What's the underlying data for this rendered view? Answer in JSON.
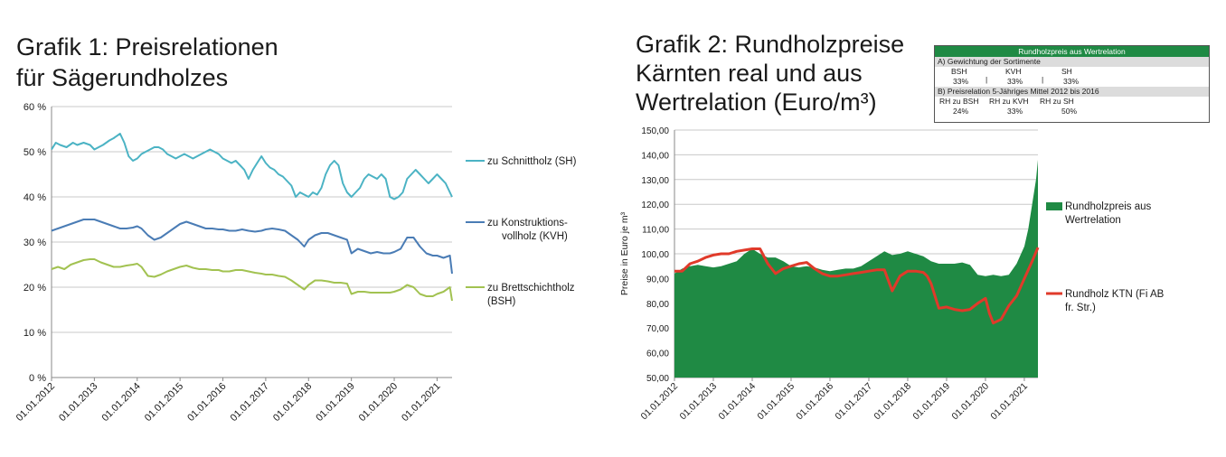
{
  "chart1": {
    "title_line1": "Grafik 1: Preisrelationen",
    "title_line2": "für Sägerundholzes",
    "chart_data": {
      "type": "line",
      "ylim": [
        0,
        60
      ],
      "yticks": [
        "0 %",
        "10 %",
        "20 %",
        "30 %",
        "40 %",
        "50 %",
        "60 %"
      ],
      "xticks": [
        "01.01.2012",
        "01.01.2013",
        "01.01.2014",
        "01.01.2015",
        "01.01.2016",
        "01.01.2017",
        "01.01.2018",
        "01.01.2019",
        "01.01.2020",
        "01.01.2021"
      ],
      "x_start": 2012.0,
      "x_end": 2021.35,
      "series": [
        {
          "name": "zu Schnittholz (SH)",
          "legend": [
            "zu Schnittholz (SH)"
          ],
          "color": "#4bb3c4",
          "x": [
            2012.0,
            2012.1,
            2012.2,
            2012.35,
            2012.5,
            2012.6,
            2012.75,
            2012.9,
            2013.0,
            2013.1,
            2013.2,
            2013.35,
            2013.45,
            2013.6,
            2013.7,
            2013.8,
            2013.9,
            2014.0,
            2014.1,
            2014.2,
            2014.3,
            2014.4,
            2014.5,
            2014.6,
            2014.7,
            2014.8,
            2014.9,
            2015.0,
            2015.1,
            2015.2,
            2015.3,
            2015.4,
            2015.5,
            2015.6,
            2015.7,
            2015.8,
            2015.9,
            2016.0,
            2016.1,
            2016.2,
            2016.3,
            2016.4,
            2016.5,
            2016.6,
            2016.7,
            2016.8,
            2016.9,
            2017.0,
            2017.1,
            2017.2,
            2017.3,
            2017.4,
            2017.5,
            2017.6,
            2017.7,
            2017.8,
            2017.9,
            2018.0,
            2018.1,
            2018.2,
            2018.3,
            2018.4,
            2018.5,
            2018.6,
            2018.7,
            2018.8,
            2018.9,
            2019.0,
            2019.1,
            2019.2,
            2019.3,
            2019.4,
            2019.5,
            2019.6,
            2019.7,
            2019.8,
            2019.9,
            2020.0,
            2020.1,
            2020.2,
            2020.3,
            2020.4,
            2020.5,
            2020.6,
            2020.7,
            2020.8,
            2020.9,
            2021.0,
            2021.1,
            2021.2,
            2021.3,
            2021.35
          ],
          "values": [
            50.5,
            52,
            51.5,
            51,
            52,
            51.5,
            52,
            51.5,
            50.5,
            51,
            51.5,
            52.5,
            53,
            54,
            52,
            49,
            48,
            48.5,
            49.5,
            50,
            50.5,
            51,
            51,
            50.5,
            49.5,
            49,
            48.5,
            49,
            49.5,
            49,
            48.5,
            49,
            49.5,
            50,
            50.5,
            50,
            49.5,
            48.5,
            48,
            47.5,
            48,
            47,
            46,
            44,
            46,
            47.5,
            49,
            47.5,
            46.5,
            46,
            45,
            44.5,
            43.5,
            42.5,
            40,
            41,
            40.5,
            40,
            41,
            40.5,
            42,
            45,
            47,
            48,
            47,
            43,
            41,
            40,
            41,
            42,
            44,
            45,
            44.5,
            44,
            45,
            44,
            40,
            39.5,
            40,
            41,
            44,
            45,
            46,
            45,
            44,
            43,
            44,
            45,
            44,
            43,
            41,
            40
          ],
          "pretrim": true
        },
        {
          "name": "zu Konstruktionsvollholz (KVH)",
          "legend": [
            "zu Konstruktions-",
            "vollholz (KVH)"
          ],
          "color": "#4a7cb5",
          "x": [
            2012.0,
            2012.15,
            2012.3,
            2012.45,
            2012.6,
            2012.75,
            2012.9,
            2013.0,
            2013.15,
            2013.3,
            2013.45,
            2013.6,
            2013.75,
            2013.9,
            2014.0,
            2014.1,
            2014.25,
            2014.4,
            2014.55,
            2014.7,
            2014.85,
            2015.0,
            2015.15,
            2015.3,
            2015.45,
            2015.6,
            2015.75,
            2015.9,
            2016.0,
            2016.15,
            2016.3,
            2016.45,
            2016.6,
            2016.75,
            2016.9,
            2017.0,
            2017.15,
            2017.3,
            2017.45,
            2017.6,
            2017.75,
            2017.9,
            2018.0,
            2018.15,
            2018.3,
            2018.45,
            2018.6,
            2018.75,
            2018.9,
            2019.0,
            2019.15,
            2019.3,
            2019.45,
            2019.6,
            2019.75,
            2019.9,
            2020.0,
            2020.15,
            2020.3,
            2020.45,
            2020.6,
            2020.75,
            2020.9,
            2021.0,
            2021.15,
            2021.3,
            2021.35
          ],
          "values": [
            32.5,
            33,
            33.5,
            34,
            34.5,
            35,
            35,
            35,
            34.5,
            34,
            33.5,
            33,
            33,
            33.2,
            33.5,
            33,
            31.5,
            30.5,
            31,
            32,
            33,
            34,
            34.5,
            34,
            33.5,
            33,
            33,
            32.8,
            32.8,
            32.5,
            32.5,
            32.8,
            32.5,
            32.3,
            32.5,
            32.8,
            33,
            32.8,
            32.5,
            31.5,
            30.5,
            29,
            30.5,
            31.5,
            32,
            32,
            31.5,
            31,
            30.5,
            27.5,
            28.5,
            28,
            27.5,
            27.8,
            27.5,
            27.5,
            27.8,
            28.5,
            31,
            31,
            29,
            27.5,
            27,
            27,
            26.5,
            27,
            23
          ]
        },
        {
          "name": "zu Brettschichtholz (BSH)",
          "legend": [
            "zu Brettschichtholz",
            "(BSH)"
          ],
          "color": "#a2c251",
          "x": [
            2012.0,
            2012.15,
            2012.3,
            2012.45,
            2012.6,
            2012.75,
            2012.9,
            2013.0,
            2013.15,
            2013.3,
            2013.45,
            2013.6,
            2013.75,
            2013.9,
            2014.0,
            2014.1,
            2014.25,
            2014.4,
            2014.55,
            2014.7,
            2014.85,
            2015.0,
            2015.15,
            2015.3,
            2015.45,
            2015.6,
            2015.75,
            2015.9,
            2016.0,
            2016.15,
            2016.3,
            2016.45,
            2016.6,
            2016.75,
            2016.9,
            2017.0,
            2017.15,
            2017.3,
            2017.45,
            2017.6,
            2017.75,
            2017.9,
            2018.0,
            2018.15,
            2018.3,
            2018.45,
            2018.6,
            2018.75,
            2018.9,
            2019.0,
            2019.15,
            2019.3,
            2019.45,
            2019.6,
            2019.75,
            2019.9,
            2020.0,
            2020.15,
            2020.3,
            2020.45,
            2020.6,
            2020.75,
            2020.9,
            2021.0,
            2021.15,
            2021.3,
            2021.35
          ],
          "values": [
            24,
            24.5,
            24,
            25,
            25.5,
            26,
            26.2,
            26.2,
            25.5,
            25,
            24.5,
            24.5,
            24.8,
            25,
            25.2,
            24.5,
            22.5,
            22.3,
            22.8,
            23.5,
            24,
            24.5,
            24.8,
            24.3,
            24,
            24,
            23.8,
            23.8,
            23.5,
            23.5,
            23.8,
            23.8,
            23.5,
            23.2,
            23,
            22.8,
            22.8,
            22.5,
            22.3,
            21.5,
            20.5,
            19.5,
            20.5,
            21.5,
            21.5,
            21.3,
            21,
            21,
            20.8,
            18.5,
            19,
            19,
            18.8,
            18.8,
            18.8,
            18.8,
            19,
            19.5,
            20.5,
            20,
            18.5,
            18,
            18,
            18.5,
            19,
            20,
            17
          ]
        }
      ]
    }
  },
  "chart2": {
    "title_line1": "Grafik 2: Rundholzpreise",
    "title_line2": "Kärnten real und aus",
    "title_line3": "Wertrelation (Euro/m³)",
    "chart_data": {
      "type": "area",
      "ylabel": "Preise in Euro je m³",
      "ylim": [
        50,
        150
      ],
      "yticks": [
        "50,00",
        "60,00",
        "70,00",
        "80,00",
        "90,00",
        "100,00",
        "110,00",
        "120,00",
        "130,00",
        "140,00",
        "150,00"
      ],
      "xticks": [
        "01.01.2012",
        "01.01.2013",
        "01.01.2014",
        "01.01.2015",
        "01.01.2016",
        "01.01.2017",
        "01.01.2018",
        "01.01.2019",
        "01.01.2020",
        "01.01.2021"
      ],
      "x_start": 2012.0,
      "x_end": 2021.35,
      "series": [
        {
          "name": "Rundholzpreis aus Wertrelation",
          "legend": [
            "Rundholzpreis aus",
            "Wertrelation"
          ],
          "color": "#1f8a44",
          "kind": "area",
          "x": [
            2012.0,
            2012.2,
            2012.4,
            2012.6,
            2012.8,
            2013.0,
            2013.2,
            2013.4,
            2013.6,
            2013.8,
            2014.0,
            2014.2,
            2014.4,
            2014.6,
            2014.8,
            2015.0,
            2015.2,
            2015.4,
            2015.6,
            2015.8,
            2016.0,
            2016.2,
            2016.4,
            2016.6,
            2016.8,
            2017.0,
            2017.2,
            2017.4,
            2017.6,
            2017.8,
            2018.0,
            2018.2,
            2018.4,
            2018.6,
            2018.8,
            2019.0,
            2019.2,
            2019.4,
            2019.6,
            2019.8,
            2020.0,
            2020.2,
            2020.4,
            2020.6,
            2020.8,
            2021.0,
            2021.1,
            2021.2,
            2021.3,
            2021.35
          ],
          "values": [
            92,
            94,
            95,
            95.5,
            95,
            94.5,
            95,
            96,
            97,
            100,
            102,
            100,
            98.5,
            98.5,
            97,
            95,
            94.5,
            95,
            94.5,
            93.5,
            93,
            93.5,
            94,
            94,
            95,
            97,
            99,
            101,
            99.5,
            100,
            101,
            100,
            99,
            97,
            96,
            96,
            96,
            96.5,
            95.5,
            91.5,
            91,
            91.5,
            91,
            91.5,
            96,
            103,
            110,
            120,
            130,
            138
          ]
        },
        {
          "name": "Rundholz KTN (Fi AB fr. Str.)",
          "legend": [
            "Rundholz KTN (Fi AB",
            "fr. Str.)"
          ],
          "color": "#e03a2a",
          "kind": "line",
          "x": [
            2012.0,
            2012.2,
            2012.4,
            2012.6,
            2012.8,
            2013.0,
            2013.2,
            2013.4,
            2013.6,
            2013.8,
            2014.0,
            2014.2,
            2014.4,
            2014.6,
            2014.8,
            2015.0,
            2015.2,
            2015.4,
            2015.6,
            2015.8,
            2016.0,
            2016.2,
            2016.4,
            2016.6,
            2016.8,
            2017.0,
            2017.2,
            2017.3,
            2017.4,
            2017.6,
            2017.8,
            2018.0,
            2018.2,
            2018.4,
            2018.5,
            2018.6,
            2018.8,
            2019.0,
            2019.2,
            2019.4,
            2019.6,
            2019.8,
            2020.0,
            2020.1,
            2020.2,
            2020.4,
            2020.6,
            2020.8,
            2021.0,
            2021.2,
            2021.35
          ],
          "values": [
            93,
            93,
            96,
            97,
            98.5,
            99.5,
            100,
            100,
            101,
            101.5,
            102,
            102,
            96,
            92,
            94,
            95,
            96,
            96.5,
            94,
            92,
            91,
            91,
            91.5,
            92,
            92.5,
            93,
            93.5,
            93.5,
            93.5,
            85,
            91,
            93,
            93,
            92.5,
            91,
            88,
            78,
            78.5,
            77.5,
            77,
            77.5,
            80,
            82,
            76,
            72,
            73.5,
            79,
            83,
            90,
            97,
            102.5
          ]
        }
      ]
    }
  },
  "infobox": {
    "header": "Rundholzpreis aus Wertrelation",
    "sectionA": "A) Gewichtung der Sortimente",
    "colsA": [
      "BSH",
      "KVH",
      "SH"
    ],
    "valsA": [
      "33%",
      "33%",
      "33%"
    ],
    "sectionB": "B) Preisrelation 5-Jähriges Mittel 2012 bis 2016",
    "colsB": [
      "RH zu BSH",
      "RH zu KVH",
      "RH zu SH"
    ],
    "valsB": [
      "24%",
      "33%",
      "50%"
    ],
    "colors": {
      "header_bg": "#1f8a44",
      "section_bg": "#dcdcdc"
    }
  }
}
